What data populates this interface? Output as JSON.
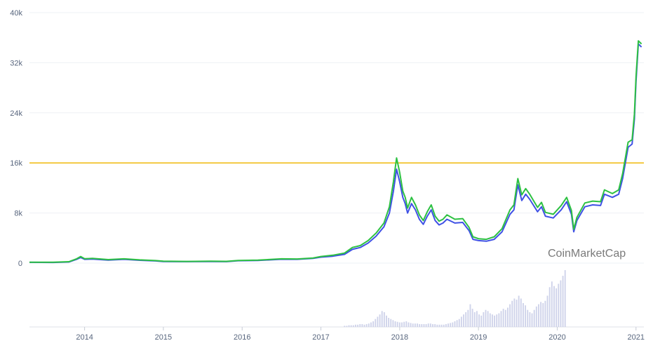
{
  "chart_data": {
    "type": "line",
    "watermark": "CoinMarketCap",
    "ylim": [
      0,
      40000
    ],
    "y_ticks": [
      {
        "value": 0,
        "label": "0"
      },
      {
        "value": 8000,
        "label": "8k"
      },
      {
        "value": 16000,
        "label": "16k"
      },
      {
        "value": 24000,
        "label": "24k"
      },
      {
        "value": 32000,
        "label": "32k"
      },
      {
        "value": 40000,
        "label": "40k"
      }
    ],
    "xlim": [
      2013.3,
      2021.1
    ],
    "x_ticks": [
      {
        "value": 2014,
        "label": "2014"
      },
      {
        "value": 2015,
        "label": "2015"
      },
      {
        "value": 2016,
        "label": "2016"
      },
      {
        "value": 2017,
        "label": "2017"
      },
      {
        "value": 2018,
        "label": "2018"
      },
      {
        "value": 2019,
        "label": "2019"
      },
      {
        "value": 2020,
        "label": "2020"
      },
      {
        "value": 2021,
        "label": "2021"
      }
    ],
    "reference_line": {
      "value": 16000,
      "color": "#f0b90b"
    },
    "grid": true,
    "series": [
      {
        "color": "#3f51e5",
        "points": [
          [
            2013.3,
            120
          ],
          [
            2013.6,
            100
          ],
          [
            2013.8,
            180
          ],
          [
            2013.9,
            600
          ],
          [
            2013.95,
            900
          ],
          [
            2014.0,
            600
          ],
          [
            2014.1,
            650
          ],
          [
            2014.3,
            480
          ],
          [
            2014.5,
            600
          ],
          [
            2014.7,
            450
          ],
          [
            2014.9,
            350
          ],
          [
            2015.0,
            260
          ],
          [
            2015.3,
            230
          ],
          [
            2015.6,
            260
          ],
          [
            2015.8,
            240
          ],
          [
            2015.95,
            380
          ],
          [
            2016.2,
            420
          ],
          [
            2016.5,
            620
          ],
          [
            2016.7,
            600
          ],
          [
            2016.9,
            760
          ],
          [
            2017.0,
            950
          ],
          [
            2017.15,
            1100
          ],
          [
            2017.3,
            1400
          ],
          [
            2017.4,
            2200
          ],
          [
            2017.5,
            2500
          ],
          [
            2017.6,
            3200
          ],
          [
            2017.7,
            4300
          ],
          [
            2017.8,
            5800
          ],
          [
            2017.87,
            8000
          ],
          [
            2017.92,
            11500
          ],
          [
            2017.96,
            15000
          ],
          [
            2018.0,
            13000
          ],
          [
            2018.04,
            10500
          ],
          [
            2018.07,
            9500
          ],
          [
            2018.1,
            8000
          ],
          [
            2018.15,
            9500
          ],
          [
            2018.2,
            8500
          ],
          [
            2018.25,
            7000
          ],
          [
            2018.3,
            6200
          ],
          [
            2018.35,
            7500
          ],
          [
            2018.4,
            8500
          ],
          [
            2018.45,
            6800
          ],
          [
            2018.5,
            6100
          ],
          [
            2018.55,
            6400
          ],
          [
            2018.6,
            7000
          ],
          [
            2018.7,
            6400
          ],
          [
            2018.8,
            6500
          ],
          [
            2018.88,
            5200
          ],
          [
            2018.93,
            3800
          ],
          [
            2019.0,
            3600
          ],
          [
            2019.1,
            3500
          ],
          [
            2019.2,
            3800
          ],
          [
            2019.3,
            5000
          ],
          [
            2019.4,
            7800
          ],
          [
            2019.45,
            8500
          ],
          [
            2019.5,
            12500
          ],
          [
            2019.55,
            10000
          ],
          [
            2019.6,
            11000
          ],
          [
            2019.65,
            10200
          ],
          [
            2019.75,
            8200
          ],
          [
            2019.8,
            9000
          ],
          [
            2019.85,
            7500
          ],
          [
            2019.95,
            7200
          ],
          [
            2020.05,
            8500
          ],
          [
            2020.12,
            9800
          ],
          [
            2020.18,
            7800
          ],
          [
            2020.21,
            5000
          ],
          [
            2020.25,
            6800
          ],
          [
            2020.35,
            9000
          ],
          [
            2020.45,
            9300
          ],
          [
            2020.55,
            9200
          ],
          [
            2020.6,
            11000
          ],
          [
            2020.7,
            10500
          ],
          [
            2020.78,
            11000
          ],
          [
            2020.83,
            13500
          ],
          [
            2020.9,
            18500
          ],
          [
            2020.95,
            19000
          ],
          [
            2020.98,
            23000
          ],
          [
            2021.0,
            29000
          ],
          [
            2021.03,
            35000
          ],
          [
            2021.07,
            34500
          ]
        ]
      },
      {
        "color": "#2dc142",
        "points": [
          [
            2013.3,
            150
          ],
          [
            2013.6,
            130
          ],
          [
            2013.8,
            220
          ],
          [
            2013.9,
            700
          ],
          [
            2013.95,
            1050
          ],
          [
            2014.0,
            700
          ],
          [
            2014.1,
            750
          ],
          [
            2014.3,
            560
          ],
          [
            2014.5,
            680
          ],
          [
            2014.7,
            520
          ],
          [
            2014.9,
            400
          ],
          [
            2015.0,
            300
          ],
          [
            2015.3,
            270
          ],
          [
            2015.6,
            300
          ],
          [
            2015.8,
            280
          ],
          [
            2015.95,
            430
          ],
          [
            2016.2,
            470
          ],
          [
            2016.5,
            680
          ],
          [
            2016.7,
            660
          ],
          [
            2016.9,
            820
          ],
          [
            2017.0,
            1050
          ],
          [
            2017.15,
            1250
          ],
          [
            2017.3,
            1600
          ],
          [
            2017.4,
            2500
          ],
          [
            2017.5,
            2800
          ],
          [
            2017.6,
            3600
          ],
          [
            2017.7,
            4800
          ],
          [
            2017.8,
            6400
          ],
          [
            2017.87,
            9000
          ],
          [
            2017.92,
            13000
          ],
          [
            2017.96,
            16800
          ],
          [
            2018.0,
            14500
          ],
          [
            2018.04,
            11500
          ],
          [
            2018.07,
            10500
          ],
          [
            2018.1,
            8800
          ],
          [
            2018.15,
            10500
          ],
          [
            2018.2,
            9300
          ],
          [
            2018.25,
            7700
          ],
          [
            2018.3,
            6800
          ],
          [
            2018.35,
            8200
          ],
          [
            2018.4,
            9300
          ],
          [
            2018.45,
            7500
          ],
          [
            2018.5,
            6700
          ],
          [
            2018.55,
            7000
          ],
          [
            2018.6,
            7700
          ],
          [
            2018.7,
            7000
          ],
          [
            2018.8,
            7100
          ],
          [
            2018.88,
            5700
          ],
          [
            2018.93,
            4200
          ],
          [
            2019.0,
            3900
          ],
          [
            2019.1,
            3800
          ],
          [
            2019.2,
            4200
          ],
          [
            2019.3,
            5500
          ],
          [
            2019.4,
            8500
          ],
          [
            2019.45,
            9300
          ],
          [
            2019.5,
            13500
          ],
          [
            2019.55,
            10900
          ],
          [
            2019.6,
            11900
          ],
          [
            2019.65,
            11000
          ],
          [
            2019.75,
            8900
          ],
          [
            2019.8,
            9700
          ],
          [
            2019.85,
            8100
          ],
          [
            2019.95,
            7800
          ],
          [
            2020.05,
            9200
          ],
          [
            2020.12,
            10500
          ],
          [
            2020.18,
            8400
          ],
          [
            2020.21,
            5400
          ],
          [
            2020.25,
            7300
          ],
          [
            2020.35,
            9600
          ],
          [
            2020.45,
            9900
          ],
          [
            2020.55,
            9800
          ],
          [
            2020.6,
            11700
          ],
          [
            2020.7,
            11100
          ],
          [
            2020.78,
            11700
          ],
          [
            2020.83,
            14300
          ],
          [
            2020.9,
            19300
          ],
          [
            2020.95,
            19700
          ],
          [
            2020.98,
            23800
          ],
          [
            2021.0,
            29800
          ],
          [
            2021.03,
            35500
          ],
          [
            2021.07,
            35000
          ]
        ]
      }
    ],
    "volume": {
      "color": "#cfd3ea",
      "x_start": 2017.3,
      "x_step": 0.028,
      "values": [
        2,
        2,
        3,
        3,
        3,
        4,
        4,
        5,
        5,
        4,
        5,
        6,
        8,
        10,
        14,
        18,
        22,
        28,
        26,
        20,
        16,
        14,
        12,
        10,
        9,
        8,
        8,
        9,
        10,
        8,
        7,
        6,
        6,
        6,
        5,
        5,
        5,
        5,
        6,
        6,
        5,
        5,
        4,
        4,
        4,
        4,
        5,
        6,
        7,
        8,
        10,
        12,
        14,
        18,
        22,
        26,
        30,
        40,
        32,
        26,
        28,
        22,
        20,
        26,
        30,
        28,
        24,
        22,
        20,
        22,
        24,
        28,
        32,
        30,
        34,
        40,
        46,
        50,
        48,
        55,
        50,
        42,
        38,
        30,
        26,
        24,
        30,
        36,
        40,
        44,
        42,
        46,
        55,
        70,
        80,
        72,
        68,
        76,
        82,
        90,
        100
      ]
    }
  }
}
